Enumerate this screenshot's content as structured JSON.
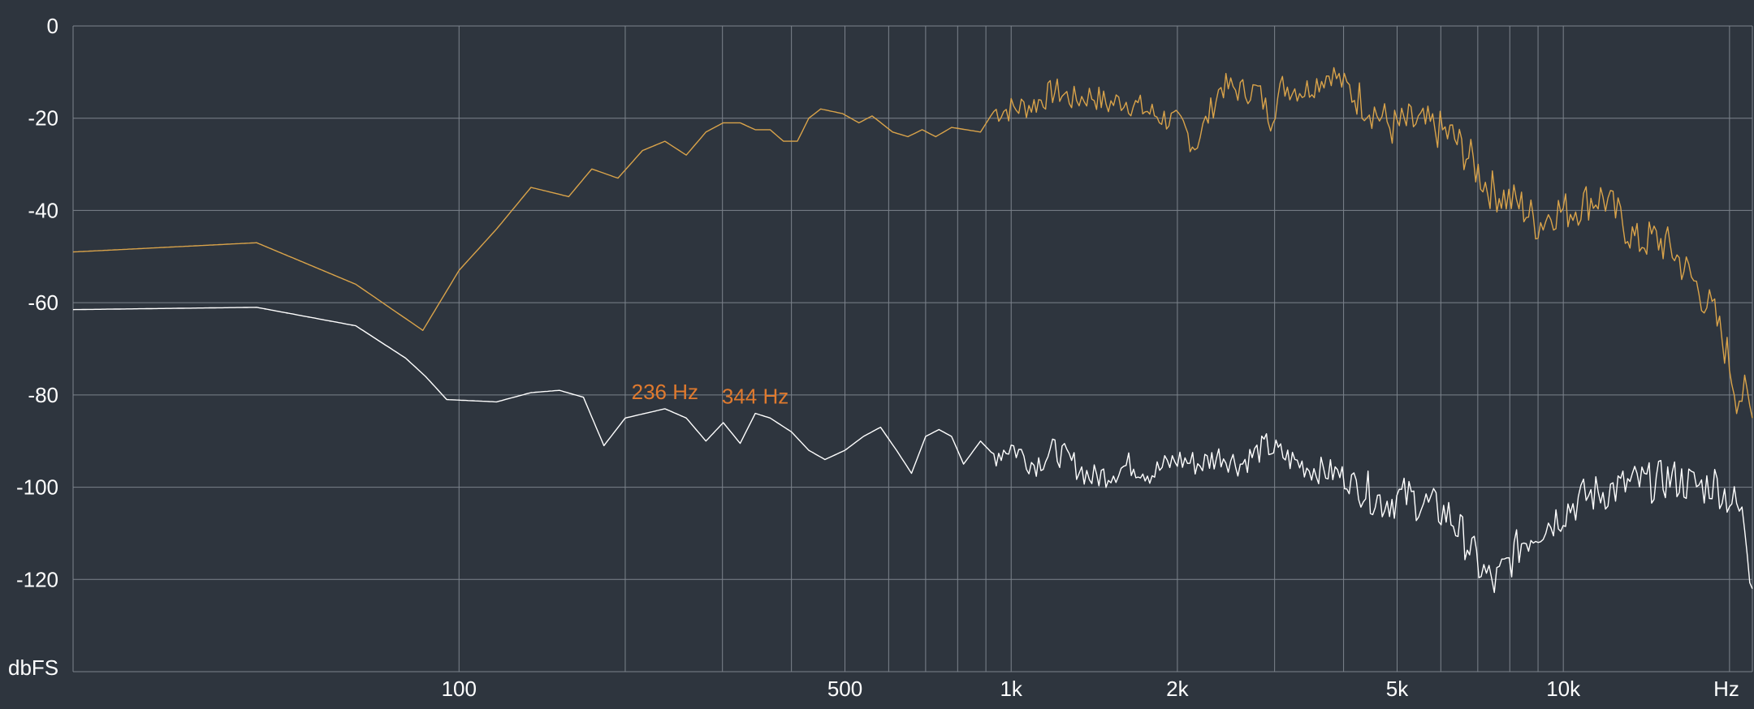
{
  "chart_data": {
    "type": "line",
    "title": "",
    "xscale": "log",
    "xlim": [
      20,
      22000
    ],
    "ylim": [
      -140,
      0
    ],
    "grid": true,
    "ylabel": "dbFS",
    "xlabel": "Hz",
    "y_ticks": [
      0,
      -20,
      -40,
      -60,
      -80,
      -100,
      -120
    ],
    "x_tick_labels": [
      {
        "value": 100,
        "label": "100"
      },
      {
        "value": 500,
        "label": "500"
      },
      {
        "value": 1000,
        "label": "1k"
      },
      {
        "value": 2000,
        "label": "2k"
      },
      {
        "value": 5000,
        "label": "5k"
      },
      {
        "value": 10000,
        "label": "10k"
      }
    ],
    "x_grid_values": [
      100,
      200,
      300,
      400,
      500,
      600,
      700,
      800,
      900,
      1000,
      2000,
      3000,
      4000,
      5000,
      6000,
      7000,
      8000,
      9000,
      10000,
      20000
    ],
    "series": [
      {
        "color": "#d9a34a",
        "points": [
          [
            20,
            -49
          ],
          [
            43,
            -47
          ],
          [
            65,
            -56
          ],
          [
            86,
            -66
          ],
          [
            100,
            -53
          ],
          [
            117,
            -44
          ],
          [
            135,
            -35
          ],
          [
            158,
            -37
          ],
          [
            174,
            -31
          ],
          [
            194,
            -33
          ],
          [
            215,
            -27
          ],
          [
            236,
            -25
          ],
          [
            258,
            -28
          ],
          [
            280,
            -23
          ],
          [
            301,
            -21
          ],
          [
            323,
            -21
          ],
          [
            344,
            -22.5
          ],
          [
            366,
            -22.5
          ],
          [
            387,
            -25
          ],
          [
            410,
            -25
          ],
          [
            430,
            -20
          ],
          [
            452,
            -18
          ],
          [
            495,
            -19
          ],
          [
            530,
            -21
          ],
          [
            560,
            -19.5
          ],
          [
            610,
            -23
          ],
          [
            650,
            -24
          ],
          [
            690,
            -22.5
          ],
          [
            730,
            -24
          ],
          [
            780,
            -22
          ],
          [
            830,
            -22.5
          ],
          [
            880,
            -23
          ],
          [
            930,
            -18.5
          ],
          [
            1000,
            -18
          ],
          [
            1100,
            -17
          ],
          [
            1200,
            -14
          ],
          [
            1300,
            -16
          ],
          [
            1400,
            -15
          ],
          [
            1500,
            -17
          ],
          [
            1600,
            -16
          ],
          [
            1800,
            -19
          ],
          [
            1950,
            -20.5
          ],
          [
            2050,
            -22
          ],
          [
            2150,
            -26
          ],
          [
            2250,
            -21
          ],
          [
            2400,
            -13
          ],
          [
            2600,
            -14
          ],
          [
            2800,
            -14
          ],
          [
            2950,
            -20
          ],
          [
            3100,
            -13
          ],
          [
            3400,
            -14
          ],
          [
            3800,
            -10
          ],
          [
            4100,
            -14
          ],
          [
            4500,
            -18
          ],
          [
            4900,
            -22
          ],
          [
            5300,
            -21
          ],
          [
            5800,
            -22
          ],
          [
            6300,
            -24
          ],
          [
            6800,
            -29
          ],
          [
            7300,
            -35
          ],
          [
            7800,
            -37
          ],
          [
            8400,
            -39
          ],
          [
            9000,
            -43
          ],
          [
            9600,
            -40
          ],
          [
            10300,
            -40
          ],
          [
            11000,
            -38
          ],
          [
            11800,
            -37
          ],
          [
            12700,
            -42
          ],
          [
            13600,
            -47
          ],
          [
            14600,
            -46
          ],
          [
            15600,
            -48
          ],
          [
            16700,
            -53
          ],
          [
            17800,
            -58
          ],
          [
            18800,
            -63
          ],
          [
            19800,
            -71
          ],
          [
            20600,
            -80
          ],
          [
            21300,
            -80
          ],
          [
            22000,
            -85
          ]
        ]
      },
      {
        "color": "#ffffff",
        "points": [
          [
            20,
            -61.5
          ],
          [
            43,
            -61
          ],
          [
            65,
            -65
          ],
          [
            80,
            -72
          ],
          [
            87,
            -76
          ],
          [
            95,
            -81
          ],
          [
            117,
            -81.5
          ],
          [
            135,
            -79.5
          ],
          [
            152,
            -79
          ],
          [
            168,
            -80.5
          ],
          [
            183,
            -91
          ],
          [
            200,
            -85
          ],
          [
            236,
            -83
          ],
          [
            258,
            -85
          ],
          [
            280,
            -90
          ],
          [
            301,
            -86
          ],
          [
            323,
            -90.5
          ],
          [
            344,
            -84
          ],
          [
            366,
            -85
          ],
          [
            400,
            -88
          ],
          [
            430,
            -92
          ],
          [
            460,
            -94
          ],
          [
            500,
            -92
          ],
          [
            540,
            -89
          ],
          [
            580,
            -87
          ],
          [
            620,
            -92
          ],
          [
            660,
            -97
          ],
          [
            700,
            -89
          ],
          [
            740,
            -87.5
          ],
          [
            780,
            -89
          ],
          [
            820,
            -95
          ],
          [
            880,
            -90
          ],
          [
            930,
            -93
          ],
          [
            1000,
            -91
          ],
          [
            1100,
            -95
          ],
          [
            1200,
            -92
          ],
          [
            1300,
            -95
          ],
          [
            1400,
            -98
          ],
          [
            1500,
            -97
          ],
          [
            1650,
            -95
          ],
          [
            1800,
            -97
          ],
          [
            2000,
            -94
          ],
          [
            2200,
            -95
          ],
          [
            2400,
            -93
          ],
          [
            2600,
            -95
          ],
          [
            2900,
            -91
          ],
          [
            3200,
            -94
          ],
          [
            3500,
            -96
          ],
          [
            3900,
            -97
          ],
          [
            4300,
            -100
          ],
          [
            4700,
            -103
          ],
          [
            5200,
            -102
          ],
          [
            5700,
            -104
          ],
          [
            6200,
            -106
          ],
          [
            6700,
            -112
          ],
          [
            7100,
            -118
          ],
          [
            7500,
            -121
          ],
          [
            7900,
            -117
          ],
          [
            8400,
            -112
          ],
          [
            9000,
            -109
          ],
          [
            9600,
            -107
          ],
          [
            10300,
            -104
          ],
          [
            11000,
            -102
          ],
          [
            11800,
            -101
          ],
          [
            12700,
            -100
          ],
          [
            13600,
            -99
          ],
          [
            14600,
            -99
          ],
          [
            15600,
            -98
          ],
          [
            16700,
            -99
          ],
          [
            17800,
            -100
          ],
          [
            18800,
            -99
          ],
          [
            19800,
            -102
          ],
          [
            20600,
            -104
          ],
          [
            21300,
            -108
          ],
          [
            22000,
            -122
          ]
        ]
      }
    ],
    "annotations": [
      {
        "text": "236 Hz",
        "x": 236,
        "y": -83
      },
      {
        "text": "344 Hz",
        "x": 344,
        "y": -84
      }
    ]
  }
}
